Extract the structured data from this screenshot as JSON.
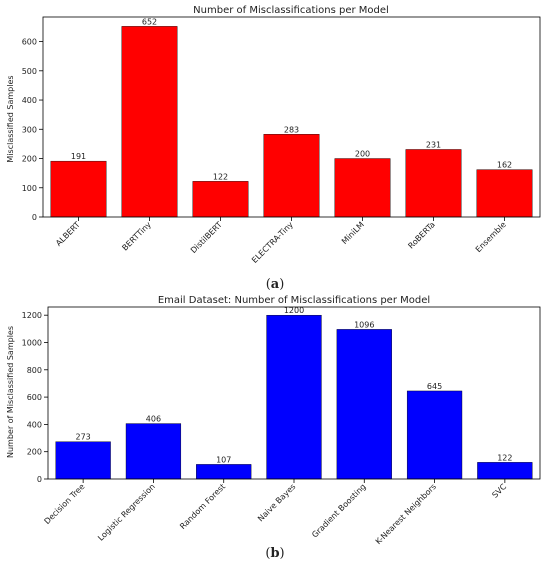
{
  "chart_data": [
    {
      "type": "bar",
      "title": "Number of Misclassifications per Model",
      "xlabel": "",
      "ylabel": "Misclassified Samples",
      "categories": [
        "ALBERT",
        "BERTTiny",
        "DistilBERT",
        "ELECTRA-Tiny",
        "MiniLM",
        "RoBERTa",
        "Ensemble"
      ],
      "values": [
        191,
        652,
        122,
        283,
        200,
        231,
        162
      ],
      "color": "#ff0000",
      "ylim": [
        0,
        684
      ],
      "yticks": [
        0,
        100,
        200,
        300,
        400,
        500,
        600
      ],
      "grid": false,
      "caption_prefix": "(",
      "caption_letter": "a",
      "caption_suffix": ")"
    },
    {
      "type": "bar",
      "title": "Email Dataset: Number of Misclassifications per Model",
      "xlabel": "",
      "ylabel": "Number of Misclassified Samples",
      "categories": [
        "Decision Tree",
        "Logistic Regression",
        "Random Forest",
        "Naive Bayes",
        "Gradient Boosting",
        "K-Nearest Neighbors",
        "SVC"
      ],
      "values": [
        273,
        406,
        107,
        1200,
        1096,
        645,
        122
      ],
      "color": "#0000ff",
      "ylim": [
        0,
        1260
      ],
      "yticks": [
        0,
        200,
        400,
        600,
        800,
        1000,
        1200
      ],
      "grid": false,
      "caption_prefix": "(",
      "caption_letter": "b",
      "caption_suffix": ")"
    }
  ]
}
